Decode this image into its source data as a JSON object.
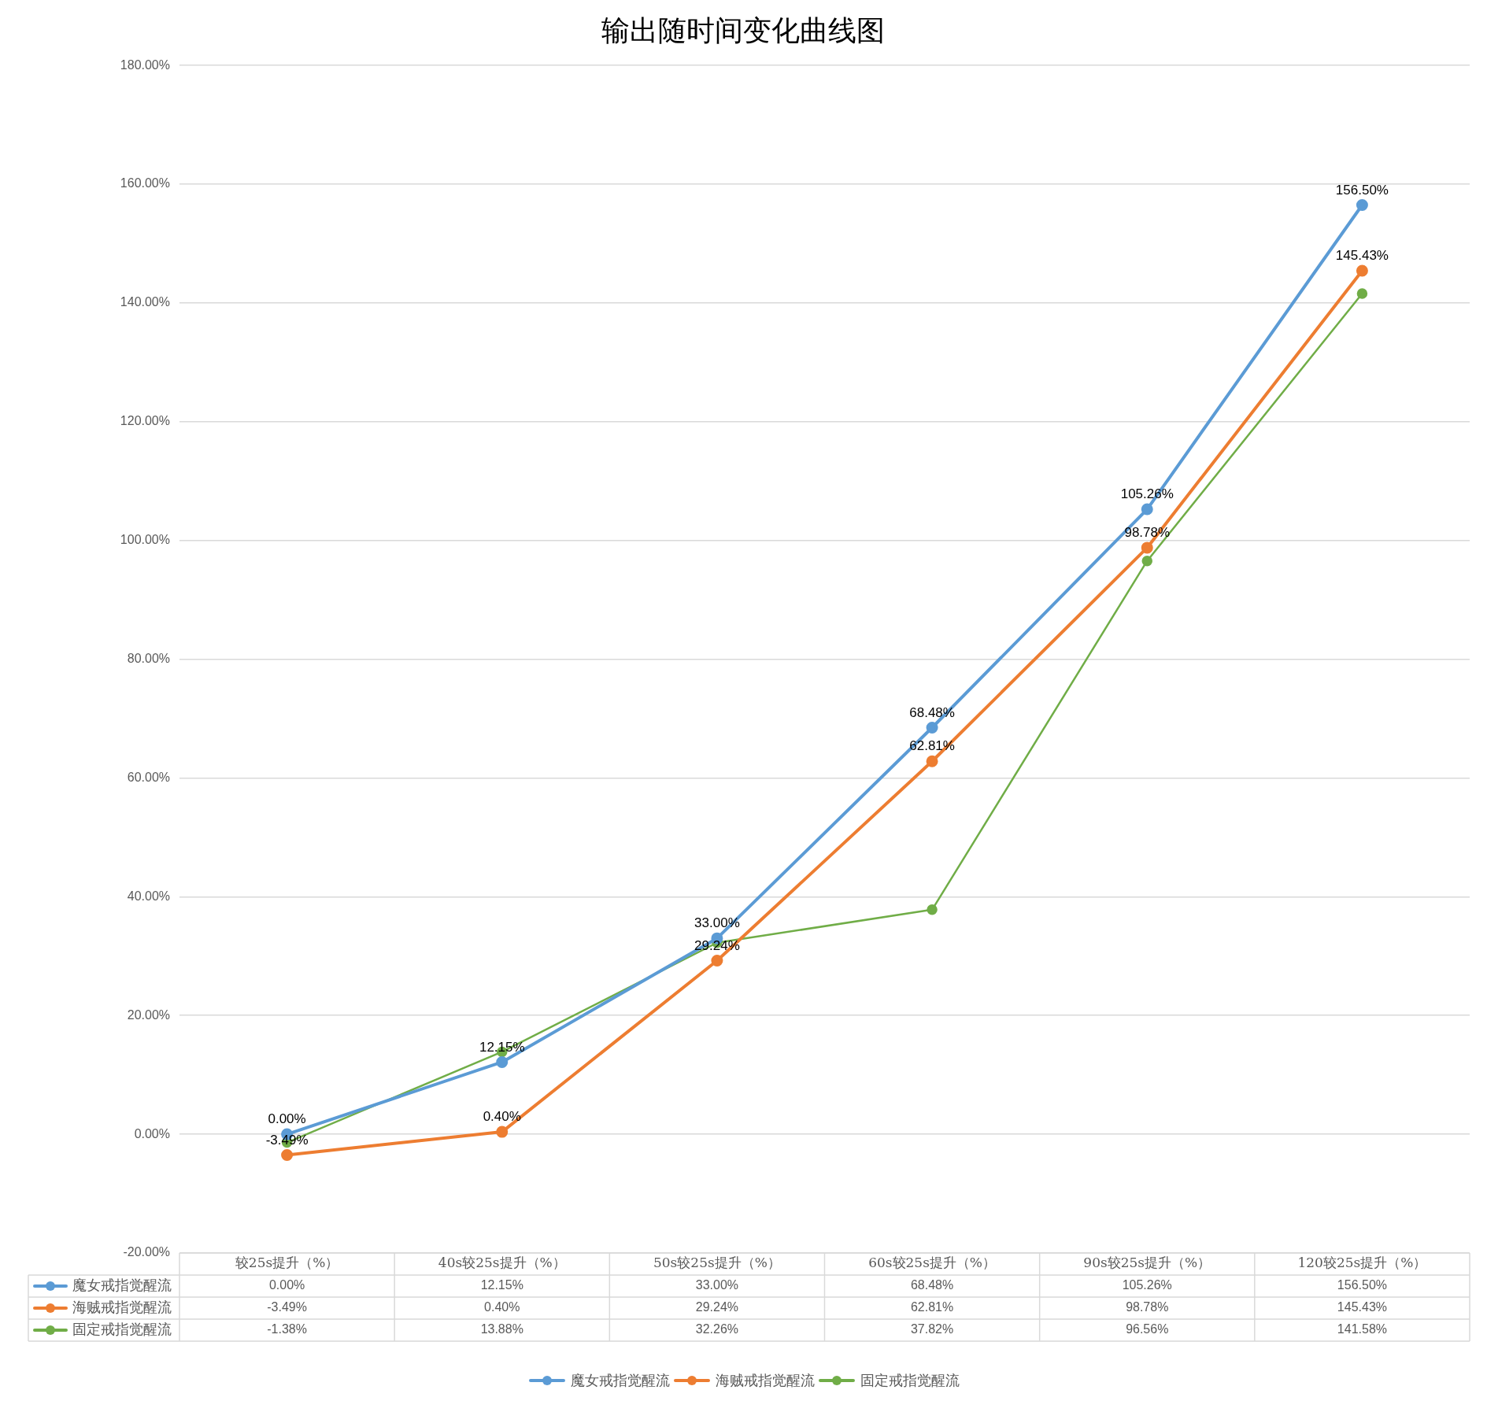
{
  "chart_data": {
    "type": "line",
    "title": "输出随时间变化曲线图",
    "categories": [
      "较25s提升（%）",
      "40s较25s提升（%）",
      "50s较25s提升（%）",
      "60s较25s提升（%）",
      "90s较25s提升（%）",
      "120较25s提升（%）"
    ],
    "series": [
      {
        "name": "魔女戒指觉醒流",
        "color": "#5b9bd5",
        "values": [
          0.0,
          12.15,
          33.0,
          68.48,
          105.26,
          156.5
        ],
        "value_labels": [
          "0.00%",
          "12.15%",
          "33.00%",
          "68.48%",
          "105.26%",
          "156.50%"
        ]
      },
      {
        "name": "海贼戒指觉醒流",
        "color": "#ed7d31",
        "values": [
          -3.49,
          0.4,
          29.24,
          62.81,
          98.78,
          145.43
        ],
        "value_labels": [
          "-3.49%",
          "0.40%",
          "29.24%",
          "62.81%",
          "98.78%",
          "145.43%"
        ]
      },
      {
        "name": "固定戒指觉醒流",
        "color": "#70ad47",
        "values": [
          -1.38,
          13.88,
          32.26,
          37.82,
          96.56,
          141.58
        ],
        "value_labels": [
          "-1.38%",
          "13.88%",
          "32.26%",
          "37.82%",
          "96.56%",
          "141.58%"
        ]
      }
    ],
    "annotations": [
      {
        "text": "0.00%",
        "x": "较25s提升（%）",
        "y": 0.0
      },
      {
        "text": "12.15%",
        "x": "40s较25s提升（%）",
        "y": 12.15
      },
      {
        "text": "33.00%",
        "x": "50s较25s提升（%）",
        "y": 33.0
      },
      {
        "text": "68.48%",
        "x": "60s较25s提升（%）",
        "y": 68.48
      },
      {
        "text": "105.26%",
        "x": "90s较25s提升（%）",
        "y": 105.26
      },
      {
        "text": "156.50%",
        "x": "120较25s提升（%）",
        "y": 156.5
      },
      {
        "text": "-3.49%",
        "x": "较25s提升（%）",
        "y": -3.49
      },
      {
        "text": "0.40%",
        "x": "40s较25s提升（%）",
        "y": 0.4
      },
      {
        "text": "29.24%",
        "x": "50s较25s提升（%）",
        "y": 29.24
      },
      {
        "text": "62.81%",
        "x": "60s较25s提升（%）",
        "y": 62.81
      },
      {
        "text": "98.78%",
        "x": "90s较25s提升（%）",
        "y": 98.78
      },
      {
        "text": "145.43%",
        "x": "120较25s提升（%）",
        "y": 145.43
      }
    ],
    "ylim": [
      -20,
      180
    ],
    "yticks": [
      {
        "value": -20,
        "label": "-20.00%"
      },
      {
        "value": 0,
        "label": "0.00%"
      },
      {
        "value": 20,
        "label": "20.00%"
      },
      {
        "value": 40,
        "label": "40.00%"
      },
      {
        "value": 60,
        "label": "60.00%"
      },
      {
        "value": 80,
        "label": "80.00%"
      },
      {
        "value": 100,
        "label": "100.00%"
      },
      {
        "value": 120,
        "label": "120.00%"
      },
      {
        "value": 140,
        "label": "140.00%"
      },
      {
        "value": 160,
        "label": "160.00%"
      },
      {
        "value": 180,
        "label": "180.00%"
      }
    ],
    "grid": "y",
    "legend": "bottom",
    "marker": "circle"
  }
}
